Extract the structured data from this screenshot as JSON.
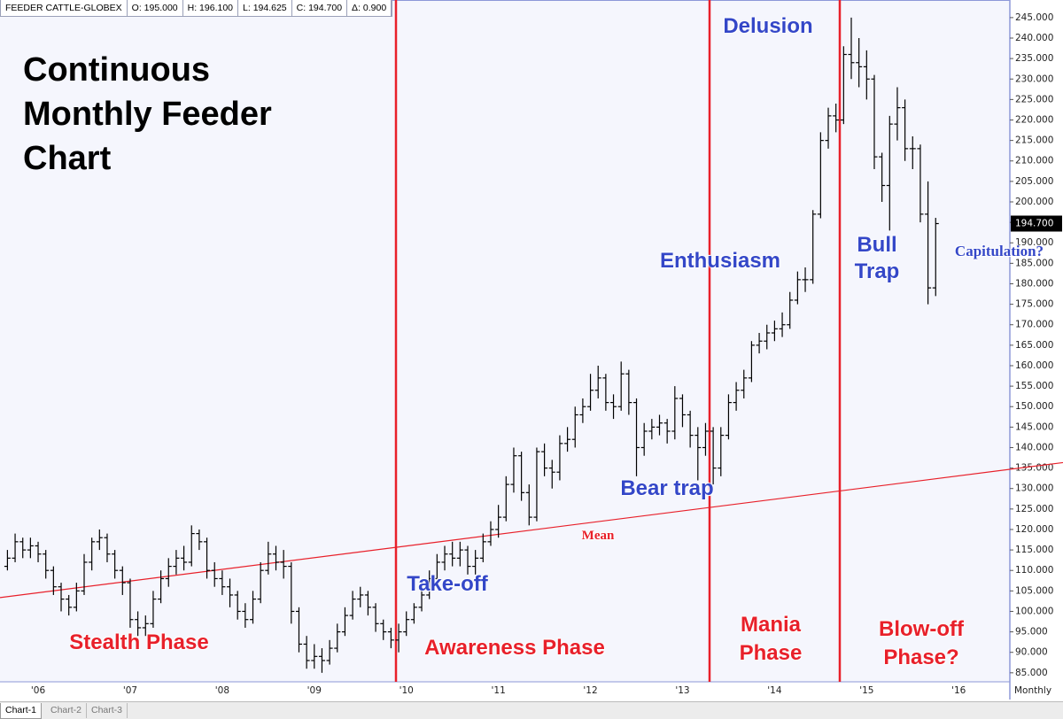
{
  "header": {
    "fields": [
      "FEEDER CATTLE-GLOBEX",
      "O: 195.000",
      "H: 196.100",
      "L: 194.625",
      "C: 194.700",
      "Δ: 0.900"
    ]
  },
  "tabs": [
    "Chart-1",
    "Chart-2",
    "Chart-3"
  ],
  "chart_data": {
    "type": "ohlc",
    "title": "Continuous Monthly Feeder Chart",
    "interval": "Monthly",
    "color": "#000000",
    "categories": [
      null,
      null,
      null,
      null,
      "'06",
      null,
      null,
      null,
      null,
      null,
      null,
      null,
      null,
      null,
      null,
      null,
      "'07",
      null,
      null,
      null,
      null,
      null,
      null,
      null,
      null,
      null,
      null,
      null,
      "'08",
      null,
      null,
      null,
      null,
      null,
      null,
      null,
      null,
      null,
      null,
      null,
      "'09",
      null,
      null,
      null,
      null,
      null,
      null,
      null,
      null,
      null,
      null,
      null,
      "'10",
      null,
      null,
      null,
      null,
      null,
      null,
      null,
      null,
      null,
      null,
      null,
      "'11",
      null,
      null,
      null,
      null,
      null,
      null,
      null,
      null,
      null,
      null,
      null,
      "'12",
      null,
      null,
      null,
      null,
      null,
      null,
      null,
      null,
      null,
      null,
      null,
      "'13",
      null,
      null,
      null,
      null,
      null,
      null,
      null,
      null,
      null,
      null,
      null,
      "'14",
      null,
      null,
      null,
      null,
      null,
      null,
      null,
      null,
      null,
      null,
      null,
      "'15",
      null,
      null,
      null,
      null,
      null,
      null,
      null,
      null,
      null,
      null,
      null,
      "'16"
    ],
    "open": [
      111,
      113,
      117,
      115,
      116,
      114,
      110,
      106,
      103,
      101,
      105,
      112,
      117,
      118,
      114,
      110,
      107,
      98,
      96,
      97,
      103,
      108,
      111,
      113,
      112,
      119,
      117,
      110,
      108,
      106,
      104,
      100,
      98,
      103,
      110,
      114,
      112,
      111,
      100,
      92,
      88,
      89,
      88,
      91,
      95,
      99,
      103,
      104,
      101,
      97,
      95,
      93,
      95,
      98,
      101,
      104,
      108,
      112,
      114,
      113,
      115,
      111,
      113,
      117,
      120,
      123,
      131,
      138,
      129,
      123,
      139,
      135,
      134,
      141,
      142,
      148,
      150,
      154,
      157,
      151,
      150,
      158,
      151,
      140,
      144,
      145,
      146,
      144,
      152,
      148,
      143,
      140,
      144,
      135,
      143,
      151,
      154,
      157,
      165,
      166,
      168,
      169,
      170,
      176,
      181,
      181,
      197,
      215,
      221,
      220,
      236,
      234,
      233,
      230,
      211,
      204,
      219,
      223,
      213,
      213,
      197,
      179,
      null,
      null,
      null
    ],
    "high": [
      115,
      119,
      118,
      118,
      117,
      115,
      111,
      107,
      104,
      107,
      114,
      118,
      120,
      119,
      115,
      111,
      108,
      100,
      99,
      105,
      110,
      113,
      115,
      116,
      121,
      120,
      118,
      112,
      110,
      108,
      105,
      102,
      105,
      112,
      117,
      116,
      115,
      112,
      101,
      94,
      92,
      91,
      93,
      97,
      101,
      105,
      106,
      105,
      102,
      98,
      96,
      97,
      100,
      102,
      106,
      110,
      114,
      116,
      117,
      117,
      116,
      115,
      119,
      122,
      126,
      133,
      140,
      139,
      131,
      140,
      141,
      137,
      143,
      145,
      150,
      152,
      158,
      160,
      158,
      153,
      161,
      159,
      152,
      146,
      147,
      148,
      147,
      155,
      153,
      149,
      145,
      146,
      145,
      145,
      153,
      156,
      159,
      166,
      168,
      170,
      171,
      173,
      178,
      183,
      184,
      198,
      217,
      223,
      224,
      238,
      245,
      240,
      237,
      231,
      212,
      221,
      228,
      225,
      216,
      214,
      205,
      196.1,
      null,
      null,
      null
    ],
    "low": [
      110,
      112,
      113,
      113,
      112,
      108,
      104,
      100,
      99,
      100,
      104,
      110,
      115,
      112,
      108,
      104,
      96,
      94,
      94,
      96,
      102,
      106,
      109,
      110,
      111,
      115,
      108,
      106,
      104,
      101,
      98,
      96,
      97,
      102,
      109,
      110,
      108,
      97,
      90,
      86,
      86,
      85,
      87,
      90,
      94,
      98,
      101,
      99,
      95,
      93,
      91,
      90,
      94,
      97,
      100,
      103,
      107,
      110,
      111,
      111,
      109,
      109,
      112,
      116,
      118,
      122,
      129,
      127,
      121,
      122,
      133,
      130,
      132,
      139,
      140,
      146,
      149,
      152,
      149,
      147,
      149,
      148,
      133,
      138,
      142,
      143,
      141,
      142,
      145,
      140,
      132,
      138,
      131,
      133,
      142,
      149,
      152,
      156,
      163,
      164,
      166,
      167,
      169,
      175,
      178,
      180,
      196,
      213,
      217,
      219,
      230,
      228,
      225,
      208,
      200,
      193,
      215,
      210,
      208,
      195,
      175,
      177,
      null,
      null,
      null
    ],
    "close": [
      113,
      117,
      115,
      116,
      114,
      110,
      106,
      103,
      101,
      105,
      112,
      117,
      118,
      114,
      110,
      107,
      98,
      96,
      97,
      103,
      108,
      111,
      113,
      112,
      119,
      117,
      110,
      108,
      106,
      104,
      100,
      98,
      103,
      110,
      114,
      112,
      111,
      100,
      92,
      88,
      89,
      88,
      91,
      95,
      99,
      103,
      104,
      101,
      97,
      95,
      93,
      95,
      98,
      101,
      104,
      108,
      112,
      114,
      113,
      115,
      111,
      113,
      117,
      120,
      123,
      131,
      138,
      129,
      123,
      139,
      135,
      134,
      141,
      142,
      148,
      150,
      154,
      157,
      151,
      150,
      158,
      151,
      140,
      144,
      145,
      146,
      144,
      152,
      148,
      143,
      140,
      144,
      135,
      143,
      151,
      154,
      157,
      165,
      166,
      168,
      169,
      170,
      176,
      181,
      181,
      197,
      215,
      221,
      220,
      236,
      234,
      233,
      230,
      211,
      204,
      219,
      223,
      213,
      213,
      197,
      179,
      194.7,
      null,
      null,
      null
    ],
    "last_price": {
      "value": 194.7,
      "label": "194.700"
    },
    "mean": {
      "name": "Mean",
      "color": "#e8202a",
      "values": [
        103.6,
        133.1
      ]
    },
    "ylim": [
      82.8,
      249.3
    ],
    "yticks": [
      {
        "value": 85,
        "label": "85.000"
      },
      {
        "value": 90,
        "label": "90.000"
      },
      {
        "value": 95,
        "label": "95.000"
      },
      {
        "value": 100,
        "label": "100.000"
      },
      {
        "value": 105,
        "label": "105.000"
      },
      {
        "value": 110,
        "label": "110.000"
      },
      {
        "value": 115,
        "label": "115.000"
      },
      {
        "value": 120,
        "label": "120.000"
      },
      {
        "value": 125,
        "label": "125.000"
      },
      {
        "value": 130,
        "label": "130.000"
      },
      {
        "value": 135,
        "label": "135.000"
      },
      {
        "value": 140,
        "label": "140.000"
      },
      {
        "value": 145,
        "label": "145.000"
      },
      {
        "value": 150,
        "label": "150.000"
      },
      {
        "value": 155,
        "label": "155.000"
      },
      {
        "value": 160,
        "label": "160.000"
      },
      {
        "value": 165,
        "label": "165.000"
      },
      {
        "value": 170,
        "label": "170.000"
      },
      {
        "value": 175,
        "label": "175.000"
      },
      {
        "value": 180,
        "label": "180.000"
      },
      {
        "value": 185,
        "label": "185.000"
      },
      {
        "value": 190,
        "label": "190.000"
      },
      {
        "value": 195,
        "label": "195.000"
      },
      {
        "value": 200,
        "label": "200.000"
      },
      {
        "value": 205,
        "label": "205.000"
      },
      {
        "value": 210,
        "label": "210.000"
      },
      {
        "value": 215,
        "label": "215.000"
      },
      {
        "value": 220,
        "label": "220.000"
      },
      {
        "value": 225,
        "label": "225.000"
      },
      {
        "value": 230,
        "label": "230.000"
      },
      {
        "value": 235,
        "label": "235.000"
      },
      {
        "value": 240,
        "label": "240.000"
      },
      {
        "value": 245,
        "label": "245.000"
      }
    ],
    "annotations": [
      {
        "text": "Delusion",
        "color": "#3447c8"
      },
      {
        "text": "Enthusiasm",
        "color": "#3447c8"
      },
      {
        "text": "Bull Trap",
        "color": "#3447c8"
      },
      {
        "text": "Capitulation?",
        "color": "#3447c8"
      },
      {
        "text": "Bear trap",
        "color": "#3447c8"
      },
      {
        "text": "Take-off",
        "color": "#3447c8"
      },
      {
        "text": "Stealth Phase",
        "color": "#e8202a"
      },
      {
        "text": "Awareness Phase",
        "color": "#e8202a"
      },
      {
        "text": "Mania Phase",
        "color": "#e8202a"
      },
      {
        "text": "Blow-off Phase?",
        "color": "#e8202a"
      }
    ]
  }
}
